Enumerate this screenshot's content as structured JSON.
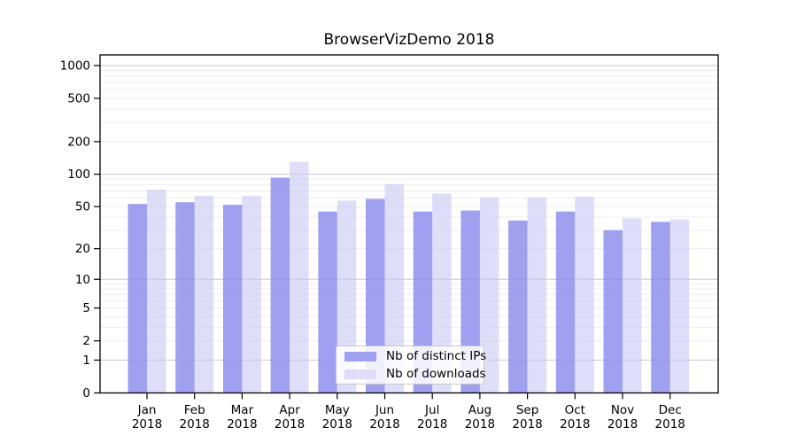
{
  "chart_data": {
    "type": "bar",
    "title": "BrowserVizDemo 2018",
    "categories": [
      "Jan",
      "Feb",
      "Mar",
      "Apr",
      "May",
      "Jun",
      "Jul",
      "Aug",
      "Sep",
      "Oct",
      "Nov",
      "Dec"
    ],
    "category_year": "2018",
    "series": [
      {
        "name": "Nb of distinct IPs",
        "color": "#a0a0f0",
        "base_color": "#8888ec",
        "opacity": 0.8,
        "values": [
          53,
          55,
          52,
          93,
          45,
          59,
          45,
          46,
          37,
          45,
          30,
          36
        ]
      },
      {
        "name": "Nb of downloads",
        "color": "#dedef8",
        "base_color": "#c8c8f4",
        "opacity": 0.6,
        "values": [
          72,
          63,
          63,
          130,
          57,
          81,
          66,
          61,
          61,
          62,
          39,
          38
        ]
      }
    ],
    "y_ticks": [
      0,
      1,
      2,
      5,
      10,
      20,
      50,
      100,
      200,
      500,
      1000
    ],
    "y_scale": "symlog",
    "ylim": [
      0,
      1000
    ],
    "xlabel": "",
    "ylabel": "",
    "grid": true,
    "legend_position": "inside-bottom-center",
    "colors": {
      "major_grid": "#c9c9c9",
      "minor_grid": "#ededed",
      "axis": "#000000",
      "background": "#ffffff"
    }
  }
}
